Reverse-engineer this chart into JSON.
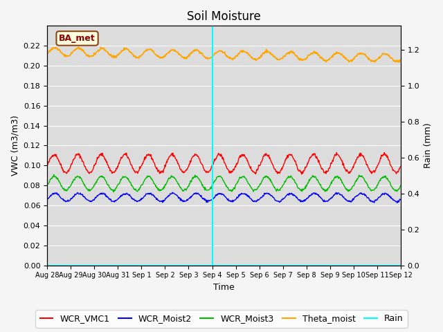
{
  "title": "Soil Moisture",
  "xlabel": "Time",
  "ylabel_left": "VWC (m3/m3)",
  "ylabel_right": "Rain (mm)",
  "ylim_left": [
    0.0,
    0.24
  ],
  "ylim_right": [
    0.0,
    1.3333
  ],
  "annotation_label": "BA_met",
  "vline_day": 7,
  "colors": {
    "WCR_VMC1": "#ff0000",
    "WCR_Moist2": "#0000ff",
    "WCR_Moist3": "#00bb00",
    "Theta_moist": "#ffa500",
    "Rain": "#00ffff"
  },
  "x_tick_labels": [
    "Aug 28",
    "Aug 29",
    "Aug 30",
    "Aug 31",
    "Sep 1",
    "Sep 2",
    "Sep 3",
    "Sep 4",
    "Sep 5",
    "Sep 6",
    "Sep 7",
    "Sep 8",
    "Sep 9",
    "Sep 10",
    "Sep 11",
    "Sep 12"
  ],
  "n_points": 800,
  "time_days": 15,
  "WCR_VMC1_base": 0.102,
  "WCR_VMC1_amp": 0.009,
  "WCR_Moist2_base": 0.068,
  "WCR_Moist2_amp": 0.004,
  "WCR_Moist3_base": 0.082,
  "WCR_Moist3_amp": 0.007,
  "Theta_moist_base": 0.214,
  "Theta_moist_amp": 0.004,
  "Theta_moist_trend": -0.006,
  "yticks_left": [
    0.0,
    0.02,
    0.04,
    0.06,
    0.08,
    0.1,
    0.12,
    0.14,
    0.16,
    0.18,
    0.2,
    0.22
  ],
  "yticks_right": [
    0.0,
    0.2,
    0.4,
    0.6,
    0.8,
    1.0,
    1.2
  ],
  "grid_color": "#ffffff",
  "plot_bg_color": "#dcdcdc",
  "fig_bg_color": "#f5f5f5",
  "title_fontsize": 12,
  "label_fontsize": 9,
  "tick_fontsize": 8,
  "legend_fontsize": 9
}
